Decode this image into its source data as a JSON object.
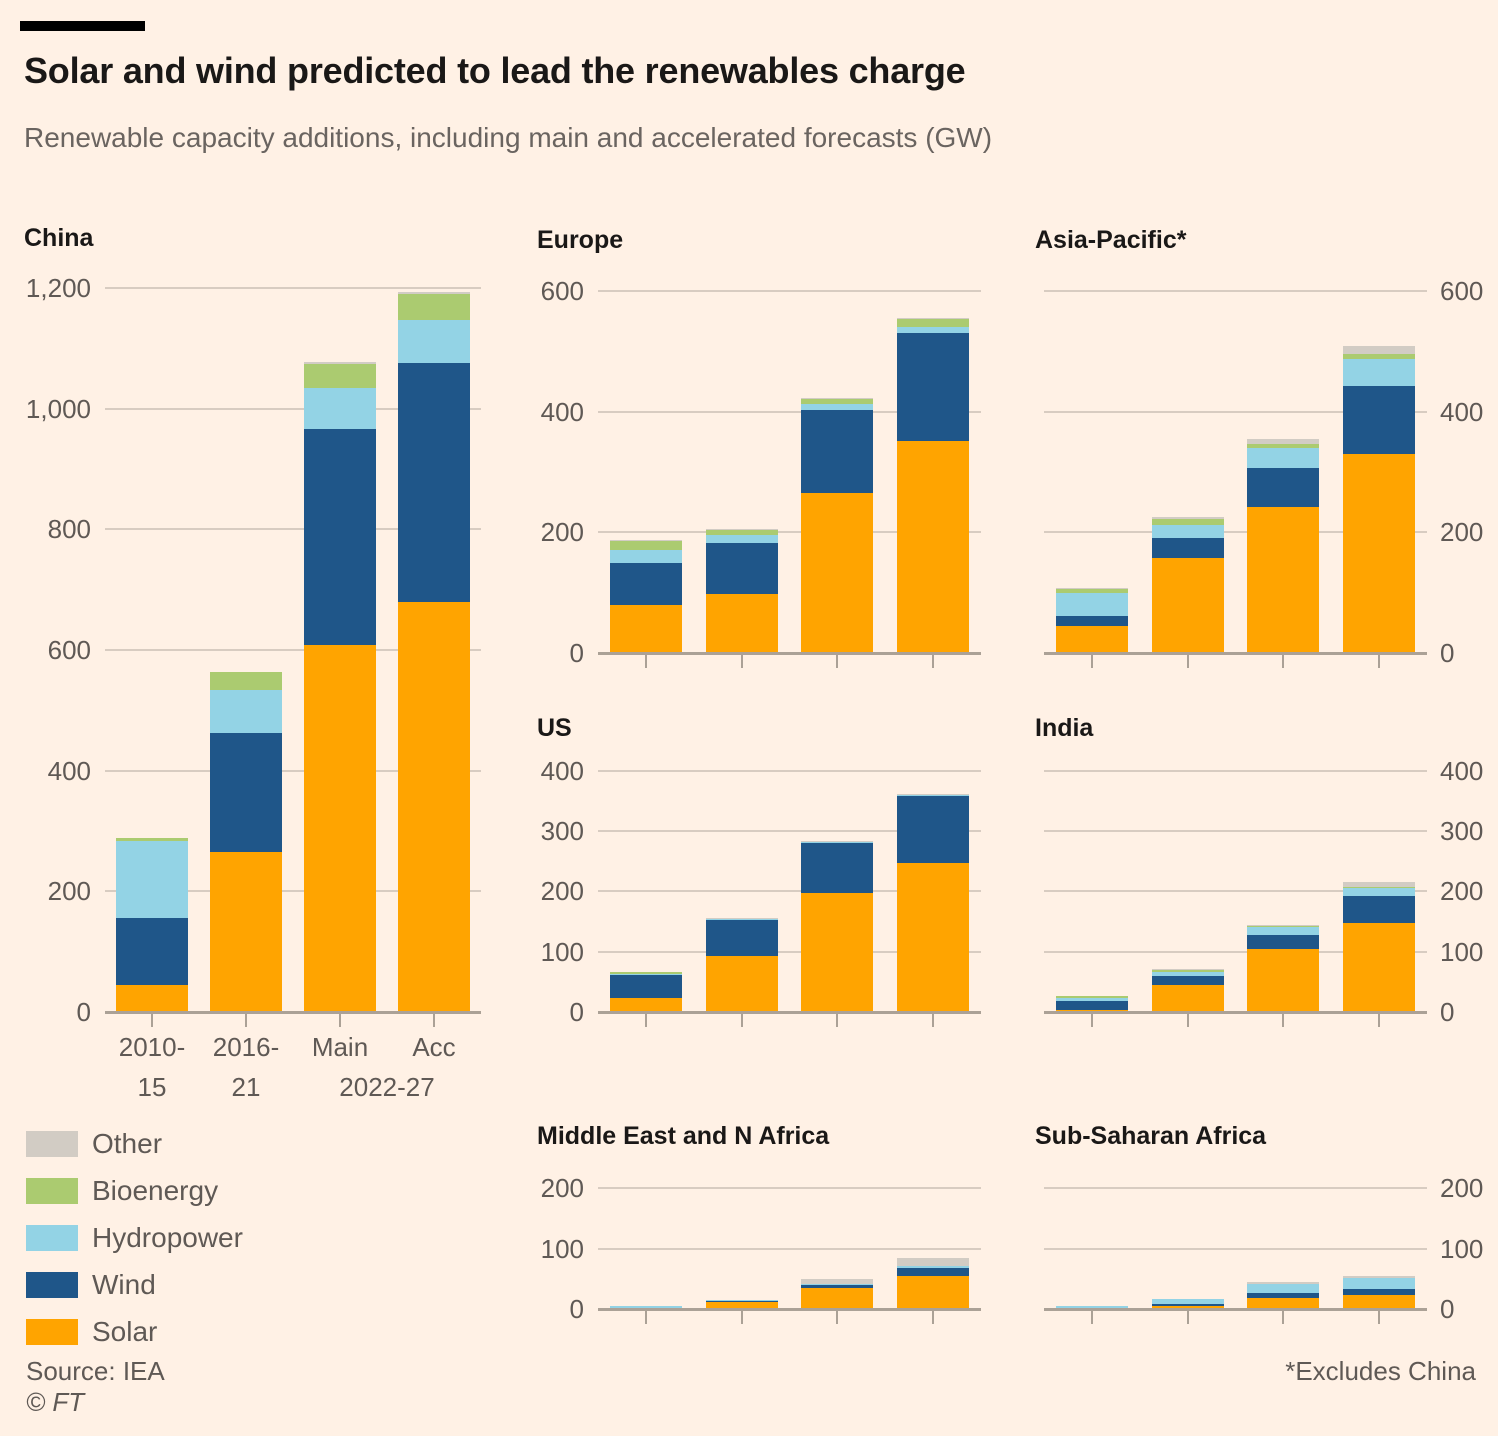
{
  "header": {
    "title": "Solar and wind predicted to lead the renewables charge",
    "subtitle": "Renewable capacity additions, including main and accelerated forecasts (GW)"
  },
  "legend": {
    "items": [
      {
        "series": "Other",
        "label": "Other",
        "color": "#D2CCC4"
      },
      {
        "series": "Bioenergy",
        "label": "Bioenergy",
        "color": "#ABCB70"
      },
      {
        "series": "Hydropower",
        "label": "Hydropower",
        "color": "#93D3E5"
      },
      {
        "series": "Wind",
        "label": "Wind",
        "color": "#1F5689"
      },
      {
        "series": "Solar",
        "label": "Solar",
        "color": "#FFA400"
      }
    ]
  },
  "footer": {
    "source": "Source: IEA",
    "credit": "© FT",
    "note": "*Excludes China"
  },
  "chart_data": [
    {
      "id": "china",
      "title": "China",
      "type": "bar",
      "stacked": true,
      "unit": "GW",
      "categories": [
        "2010-15",
        "2016-21",
        "Main 2022-27",
        "Acc 2022-27"
      ],
      "ylim": [
        0,
        1200
      ],
      "yticks": [
        0,
        200,
        400,
        600,
        800,
        1000,
        1200
      ],
      "x_ticks": {
        "line1": [
          "2010-",
          "2016-",
          "Main",
          "Acc"
        ],
        "line2": [
          "15",
          "21"
        ],
        "line2_span": "2022-27"
      },
      "series": [
        {
          "name": "Solar",
          "values": [
            45,
            265,
            608,
            680
          ]
        },
        {
          "name": "Wind",
          "values": [
            110,
            198,
            358,
            395
          ]
        },
        {
          "name": "Hydropower",
          "values": [
            128,
            70,
            68,
            72
          ]
        },
        {
          "name": "Bioenergy",
          "values": [
            6,
            30,
            40,
            43
          ]
        },
        {
          "name": "Other",
          "values": [
            0,
            0,
            3,
            3
          ]
        }
      ]
    },
    {
      "id": "europe",
      "title": "Europe",
      "type": "bar",
      "stacked": true,
      "unit": "GW",
      "categories": [
        "2010-15",
        "2016-21",
        "Main 2022-27",
        "Acc 2022-27"
      ],
      "ylim": [
        0,
        600
      ],
      "yticks": [
        0,
        200,
        400,
        600
      ],
      "series": [
        {
          "name": "Solar",
          "values": [
            80,
            97,
            266,
            352
          ]
        },
        {
          "name": "Wind",
          "values": [
            70,
            85,
            137,
            178
          ]
        },
        {
          "name": "Hydropower",
          "values": [
            20,
            13,
            9,
            11
          ]
        },
        {
          "name": "Bioenergy",
          "values": [
            15,
            10,
            9,
            12
          ]
        },
        {
          "name": "Other",
          "values": [
            2,
            1,
            2,
            2
          ]
        }
      ]
    },
    {
      "id": "asia_pacific",
      "title": "Asia-Pacific*",
      "type": "bar",
      "stacked": true,
      "unit": "GW",
      "categories": [
        "2010-15",
        "2016-21",
        "Main 2022-27",
        "Acc 2022-27"
      ],
      "ylim": [
        0,
        600
      ],
      "yticks": [
        0,
        200,
        400,
        600
      ],
      "series": [
        {
          "name": "Solar",
          "values": [
            45,
            158,
            242,
            330
          ]
        },
        {
          "name": "Wind",
          "values": [
            17,
            32,
            65,
            113
          ]
        },
        {
          "name": "Hydropower",
          "values": [
            38,
            22,
            33,
            45
          ]
        },
        {
          "name": "Bioenergy",
          "values": [
            7,
            10,
            7,
            8
          ]
        },
        {
          "name": "Other",
          "values": [
            1,
            3,
            8,
            13
          ]
        }
      ]
    },
    {
      "id": "us",
      "title": "US",
      "type": "bar",
      "stacked": true,
      "unit": "GW",
      "categories": [
        "2010-15",
        "2016-21",
        "Main 2022-27",
        "Acc 2022-27"
      ],
      "ylim": [
        0,
        400
      ],
      "yticks": [
        0,
        100,
        200,
        300,
        400
      ],
      "series": [
        {
          "name": "Solar",
          "values": [
            23,
            92,
            197,
            247
          ]
        },
        {
          "name": "Wind",
          "values": [
            39,
            61,
            83,
            111
          ]
        },
        {
          "name": "Hydropower",
          "values": [
            1,
            1,
            1,
            1
          ]
        },
        {
          "name": "Bioenergy",
          "values": [
            3,
            1,
            0,
            0
          ]
        },
        {
          "name": "Other",
          "values": [
            0,
            1,
            3,
            2
          ]
        }
      ]
    },
    {
      "id": "india",
      "title": "India",
      "type": "bar",
      "stacked": true,
      "unit": "GW",
      "categories": [
        "2010-15",
        "2016-21",
        "Main 2022-27",
        "Acc 2022-27"
      ],
      "ylim": [
        0,
        400
      ],
      "yticks": [
        0,
        100,
        200,
        300,
        400
      ],
      "series": [
        {
          "name": "Solar",
          "values": [
            4,
            45,
            105,
            148
          ]
        },
        {
          "name": "Wind",
          "values": [
            14,
            15,
            22,
            44
          ]
        },
        {
          "name": "Hydropower",
          "values": [
            6,
            6,
            14,
            15
          ]
        },
        {
          "name": "Bioenergy",
          "values": [
            2,
            3,
            1,
            1
          ]
        },
        {
          "name": "Other",
          "values": [
            0,
            3,
            3,
            7
          ]
        }
      ]
    },
    {
      "id": "mena",
      "title": "Middle East and N Africa",
      "type": "bar",
      "stacked": true,
      "unit": "GW",
      "categories": [
        "2010-15",
        "2016-21",
        "Main 2022-27",
        "Acc 2022-27"
      ],
      "ylim": [
        0,
        200
      ],
      "yticks": [
        0,
        100,
        200
      ],
      "series": [
        {
          "name": "Solar",
          "values": [
            1,
            12,
            35,
            55
          ]
        },
        {
          "name": "Wind",
          "values": [
            1,
            2,
            5,
            13
          ]
        },
        {
          "name": "Hydropower",
          "values": [
            3,
            1,
            2,
            4
          ]
        },
        {
          "name": "Bioenergy",
          "values": [
            0,
            0,
            0,
            0
          ]
        },
        {
          "name": "Other",
          "values": [
            0,
            0,
            8,
            13
          ]
        }
      ]
    },
    {
      "id": "ssa",
      "title": "Sub-Saharan Africa",
      "type": "bar",
      "stacked": true,
      "unit": "GW",
      "categories": [
        "2010-15",
        "2016-21",
        "Main 2022-27",
        "Acc 2022-27"
      ],
      "ylim": [
        0,
        200
      ],
      "yticks": [
        0,
        100,
        200
      ],
      "series": [
        {
          "name": "Solar",
          "values": [
            1,
            5,
            18,
            24
          ]
        },
        {
          "name": "Wind",
          "values": [
            1,
            3,
            8,
            9
          ]
        },
        {
          "name": "Hydropower",
          "values": [
            3,
            8,
            16,
            18
          ]
        },
        {
          "name": "Bioenergy",
          "values": [
            0,
            0,
            0,
            0
          ]
        },
        {
          "name": "Other",
          "values": [
            0,
            0,
            3,
            3
          ]
        }
      ]
    }
  ]
}
